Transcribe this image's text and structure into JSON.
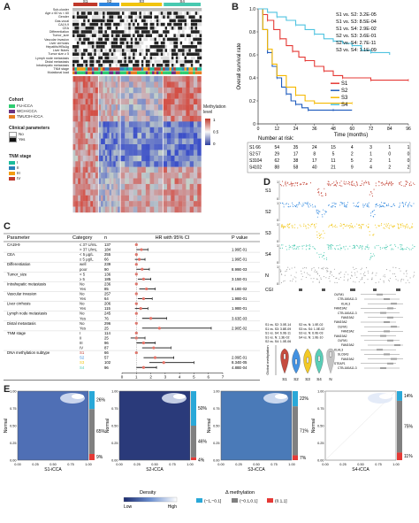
{
  "panels": {
    "A": "A",
    "B": "B",
    "C": "C",
    "D": "D",
    "E": "E"
  },
  "panelA": {
    "groups": [
      "S1",
      "S2",
      "S3",
      "S4"
    ],
    "group_colors": [
      "#c0392b",
      "#2e86de",
      "#f1c40f",
      "#48c9b0"
    ],
    "row_labels": [
      "Sub-cluster",
      "Age ≥ 60 vs < 60",
      "Gender",
      "Gas-vocal",
      "CA19-9",
      "CEA",
      "Differentiation",
      "Tumor_size",
      "Vascular invasion",
      "Liver cirrhosis",
      "Hepatitis/HBsAg",
      "Liver flukes",
      "Tumor size ≥ 5",
      "Lymph node metastasis",
      "Distal metastasis",
      "Intrahepatic metastasis",
      "TNM stage",
      "Mutational load"
    ],
    "legend_cohort_title": "Cohort",
    "cohorts": [
      {
        "label": "FU-iCCA",
        "color": "#2ecc71"
      },
      {
        "label": "WCH-iCCA",
        "color": "#6c3483"
      },
      {
        "label": "TMUCIH-iCCA",
        "color": "#e67e22"
      }
    ],
    "clinical_title": "Clinical parameters",
    "clinical": [
      {
        "label": "No",
        "color": "#ffffff"
      },
      {
        "label": "Yes",
        "color": "#111111"
      }
    ],
    "tnm_title": "TNM stage",
    "tnm": [
      {
        "label": "I",
        "color": "#1abc9c"
      },
      {
        "label": "II",
        "color": "#2980b9"
      },
      {
        "label": "III",
        "color": "#f39c12"
      },
      {
        "label": "IV",
        "color": "#c0392b"
      }
    ],
    "meth_title": "Methylation level",
    "meth_ticks": [
      "1",
      "0.5",
      "0"
    ]
  },
  "panelB": {
    "ylabel": "Overall survival rate",
    "xlabel": "Time (months)",
    "stats": [
      "S1 vs. S2: 3.2E-05",
      "S1 vs. S3: 8.5E-04",
      "S1 vs. S4: 2.9E-02",
      "S2 vs. S3: 3.6E-01",
      "S2 vs. S4: 2.7E-11",
      "S3 vs. S4: 1.1E-09"
    ],
    "legend": [
      {
        "label": "S1",
        "color": "#e53935"
      },
      {
        "label": "S2",
        "color": "#1e5bbd"
      },
      {
        "label": "S3",
        "color": "#f5b800"
      },
      {
        "label": "S4",
        "color": "#4fc3e0"
      }
    ],
    "risk_title": "Number at risk:",
    "risk_rows": [
      {
        "label": "S1",
        "values": [
          "66",
          "54",
          "35",
          "24",
          "15",
          "4",
          "3",
          "1",
          "1"
        ]
      },
      {
        "label": "S2",
        "values": [
          "57",
          "29",
          "17",
          "8",
          "5",
          "2",
          "1",
          "0",
          "0"
        ]
      },
      {
        "label": "S3",
        "values": [
          "104",
          "62",
          "38",
          "17",
          "11",
          "5",
          "2",
          "1",
          "0"
        ]
      },
      {
        "label": "S4",
        "values": [
          "102",
          "88",
          "58",
          "40",
          "21",
          "9",
          "4",
          "2",
          "2"
        ]
      }
    ]
  },
  "chart_data": {
    "type": "line",
    "title": "",
    "xlabel": "Time (months)",
    "ylabel": "Overall survival rate",
    "xlim": [
      0,
      96
    ],
    "ylim": [
      0,
      1.0
    ],
    "x_ticks": [
      "0",
      "12",
      "24",
      "36",
      "48",
      "60",
      "72",
      "84",
      "96"
    ],
    "y_ticks": [
      "0",
      "0.2",
      "0.4",
      "0.6",
      "0.8",
      "1.0"
    ],
    "series": [
      {
        "name": "S1",
        "x": [
          0,
          3,
          6,
          10,
          14,
          18,
          22,
          26,
          30,
          36,
          42,
          48,
          54,
          60,
          72,
          84,
          96
        ],
        "y": [
          1.0,
          0.95,
          0.9,
          0.82,
          0.74,
          0.68,
          0.63,
          0.58,
          0.55,
          0.5,
          0.46,
          0.42,
          0.4,
          0.4,
          0.38,
          0.38,
          0.38
        ]
      },
      {
        "name": "S2",
        "x": [
          0,
          3,
          6,
          9,
          12,
          15,
          18,
          21,
          24,
          28,
          32,
          36,
          48,
          60
        ],
        "y": [
          1.0,
          0.82,
          0.62,
          0.5,
          0.4,
          0.32,
          0.26,
          0.2,
          0.17,
          0.14,
          0.12,
          0.12,
          0.12,
          0.12
        ]
      },
      {
        "name": "S3",
        "x": [
          0,
          3,
          6,
          9,
          12,
          18,
          24,
          30,
          36,
          48,
          60
        ],
        "y": [
          1.0,
          0.82,
          0.65,
          0.52,
          0.42,
          0.32,
          0.25,
          0.2,
          0.18,
          0.18,
          0.18
        ]
      },
      {
        "name": "S4",
        "x": [
          0,
          6,
          12,
          18,
          24,
          30,
          36,
          42,
          48,
          54,
          60,
          66,
          72,
          84
        ],
        "y": [
          1.0,
          0.97,
          0.93,
          0.9,
          0.86,
          0.82,
          0.78,
          0.74,
          0.72,
          0.7,
          0.68,
          0.64,
          0.62,
          0.6
        ]
      }
    ]
  },
  "panelC": {
    "headers": [
      "Parameter",
      "Category",
      "n",
      "HR with 95% CI",
      "P value"
    ],
    "rows": [
      {
        "param": "CA19-9",
        "cat": "≤ 37 U/mL",
        "n": "137",
        "hr": 1.0,
        "lo": 1.0,
        "hi": 1.0,
        "p": ""
      },
      {
        "param": "",
        "cat": "> 37 U/mL",
        "n": "184",
        "hr": 1.35,
        "lo": 1.0,
        "hi": 1.8,
        "p": "1.99E-01"
      },
      {
        "param": "CEA",
        "cat": "< 5 μg/L",
        "n": "255",
        "hr": 1.0,
        "lo": 1.0,
        "hi": 1.0,
        "p": ""
      },
      {
        "param": "",
        "cat": "≥ 5 μg/L",
        "n": "66",
        "hr": 1.2,
        "lo": 0.9,
        "hi": 1.6,
        "p": "1.99E-01"
      },
      {
        "param": "Differentiation",
        "cat": "well",
        "n": "239",
        "hr": 1.0,
        "lo": 1.0,
        "hi": 1.0,
        "p": ""
      },
      {
        "param": "",
        "cat": "poor",
        "n": "90",
        "hr": 1.4,
        "lo": 1.0,
        "hi": 1.9,
        "p": "8.99E-03"
      },
      {
        "param": "Tumor_size",
        "cat": "< 5",
        "n": "136",
        "hr": 1.0,
        "lo": 1.0,
        "hi": 1.0,
        "p": ""
      },
      {
        "param": "",
        "cat": "≥ 5",
        "n": "185",
        "hr": 1.5,
        "lo": 1.1,
        "hi": 2.0,
        "p": "3.15E-01"
      },
      {
        "param": "Intrahepatic metastasis",
        "cat": "No",
        "n": "236",
        "hr": 1.0,
        "lo": 1.0,
        "hi": 1.0,
        "p": ""
      },
      {
        "param": "",
        "cat": "Yes",
        "n": "85",
        "hr": 1.7,
        "lo": 1.2,
        "hi": 2.3,
        "p": "8.18E-02"
      },
      {
        "param": "Vascular invasion",
        "cat": "No",
        "n": "257",
        "hr": 1.0,
        "lo": 1.0,
        "hi": 1.0,
        "p": ""
      },
      {
        "param": "",
        "cat": "Yes",
        "n": "64",
        "hr": 1.5,
        "lo": 1.1,
        "hi": 2.1,
        "p": "1.98E-01"
      },
      {
        "param": "Liver cirrhosis",
        "cat": "No",
        "n": "206",
        "hr": 1.0,
        "lo": 1.0,
        "hi": 1.0,
        "p": ""
      },
      {
        "param": "",
        "cat": "Yes",
        "n": "115",
        "hr": 1.3,
        "lo": 0.9,
        "hi": 1.8,
        "p": "1.98E-01"
      },
      {
        "param": "Lymph node metastasis",
        "cat": "No",
        "n": "245",
        "hr": 1.0,
        "lo": 1.0,
        "hi": 1.0,
        "p": ""
      },
      {
        "param": "",
        "cat": "Yes",
        "n": "76",
        "hr": 2.0,
        "lo": 1.4,
        "hi": 3.1,
        "p": "3.63E-03"
      },
      {
        "param": "Distal metastasis",
        "cat": "No",
        "n": "296",
        "hr": 1.0,
        "lo": 1.0,
        "hi": 1.0,
        "p": ""
      },
      {
        "param": "",
        "cat": "Yes",
        "n": "25",
        "hr": 2.6,
        "lo": 1.4,
        "hi": 6.2,
        "p": "2.90E-02"
      },
      {
        "param": "TNM stage",
        "cat": "I",
        "n": "114",
        "hr": 1.0,
        "lo": 1.0,
        "hi": 1.0,
        "p": ""
      },
      {
        "param": "",
        "cat": "II",
        "n": "25",
        "hr": 1.0,
        "lo": 0.6,
        "hi": 1.6,
        "p": ""
      },
      {
        "param": "",
        "cat": "III",
        "n": "96",
        "hr": 1.5,
        "lo": 1.0,
        "hi": 2.3,
        "p": ""
      },
      {
        "param": "",
        "cat": "IV",
        "n": "87",
        "hr": 2.2,
        "lo": 1.4,
        "hi": 3.4,
        "p": ""
      },
      {
        "param": "DNA methylation subtype",
        "cat": "S1",
        "n": "66",
        "hr": 1.0,
        "lo": 1.0,
        "hi": 1.0,
        "p": ""
      },
      {
        "param": "",
        "cat": "S2",
        "n": "57",
        "hr": 2.3,
        "lo": 1.5,
        "hi": 3.6,
        "p": "2.09E-01"
      },
      {
        "param": "",
        "cat": "S3",
        "n": "102",
        "hr": 2.9,
        "lo": 1.9,
        "hi": 5.0,
        "p": "8.34E-05"
      },
      {
        "param": "",
        "cat": "S4",
        "n": "96",
        "hr": 1.5,
        "lo": 1.0,
        "hi": 2.4,
        "p": "4.88E-04"
      }
    ],
    "axis_ticks": [
      "0",
      "1",
      "2",
      "3",
      "4",
      "5",
      "6",
      "7"
    ]
  },
  "panelD": {
    "track_labels": [
      "S1",
      "S2",
      "S3",
      "S4",
      "N"
    ],
    "track_colors": [
      "#c0392b",
      "#2e86de",
      "#f1c40f",
      "#48c9b0",
      "#9e9e9e"
    ],
    "track_axis": [
      "1",
      "0"
    ],
    "cgi_label": "CGI",
    "genes": [
      "OLFM1",
      "CTB-160A11.3",
      "KLHL3",
      "FAM19A2",
      "CTB-160A11.3",
      "FAM19A2",
      "FAM19A2",
      "OLFM1",
      "FAM19A2",
      "FAM19A2",
      "OLFM1",
      "FAM19A2",
      "KLHL3",
      "SLC6A3",
      "FAM19A2",
      "STEAP1",
      "CTB-160A11.3"
    ],
    "violin_stats": [
      "S1 vs. S2: 3.0E-14",
      "S1 vs. S3: 3.8E-09",
      "S1 vs. S4: 6.0E-11",
      "S1 vs. N: 1.3E-02",
      "S2 vs. S4: 1.0E-06",
      "S2 vs. N: 1.0E-02",
      "S3 vs. S4: 1.0E-02",
      "S3 vs. N: 6.0E-03",
      "S4 vs. N: 1.0E-10"
    ],
    "violin_ylabel": "Global methylation",
    "violin_groups": [
      "S1",
      "S2",
      "S3",
      "S4",
      "N"
    ]
  },
  "panelE": {
    "plots": [
      {
        "xlabel": "S1-iCCA",
        "ylabel": "Normal",
        "pcts": [
          "26%",
          "65%",
          "9%"
        ],
        "bg": "#4f6fb5"
      },
      {
        "xlabel": "S2-iCCA",
        "ylabel": "Normal",
        "pcts": [
          "50%",
          "46%",
          "4%"
        ],
        "bg": "#2a3a7a"
      },
      {
        "xlabel": "S3-iCCA",
        "ylabel": "Normal",
        "pcts": [
          "22%",
          "71%",
          "7%"
        ],
        "bg": "#4a7ab8"
      },
      {
        "xlabel": "S4-iCCA",
        "ylabel": "Normal",
        "pcts": [
          "14%",
          "75%",
          "11%"
        ],
        "bg": "#ffffff"
      }
    ],
    "x_ticks": [
      "0.00",
      "0.25",
      "0.50",
      "0.75",
      "1.00"
    ],
    "y_ticks": [
      "1.00",
      "0.75",
      "0.50",
      "0.25",
      "0.00"
    ],
    "density_title": "Density",
    "density_low": "Low",
    "density_high": "High",
    "delta_title": "Δ methylation",
    "delta_items": [
      {
        "label": "(−1,−0.1]",
        "color": "#29a8d8"
      },
      {
        "label": "(−0.1,0.1]",
        "color": "#808080"
      },
      {
        "label": "(0.1,1]",
        "color": "#e53935"
      }
    ],
    "bar_colors": [
      "#29a8d8",
      "#808080",
      "#e53935"
    ]
  }
}
